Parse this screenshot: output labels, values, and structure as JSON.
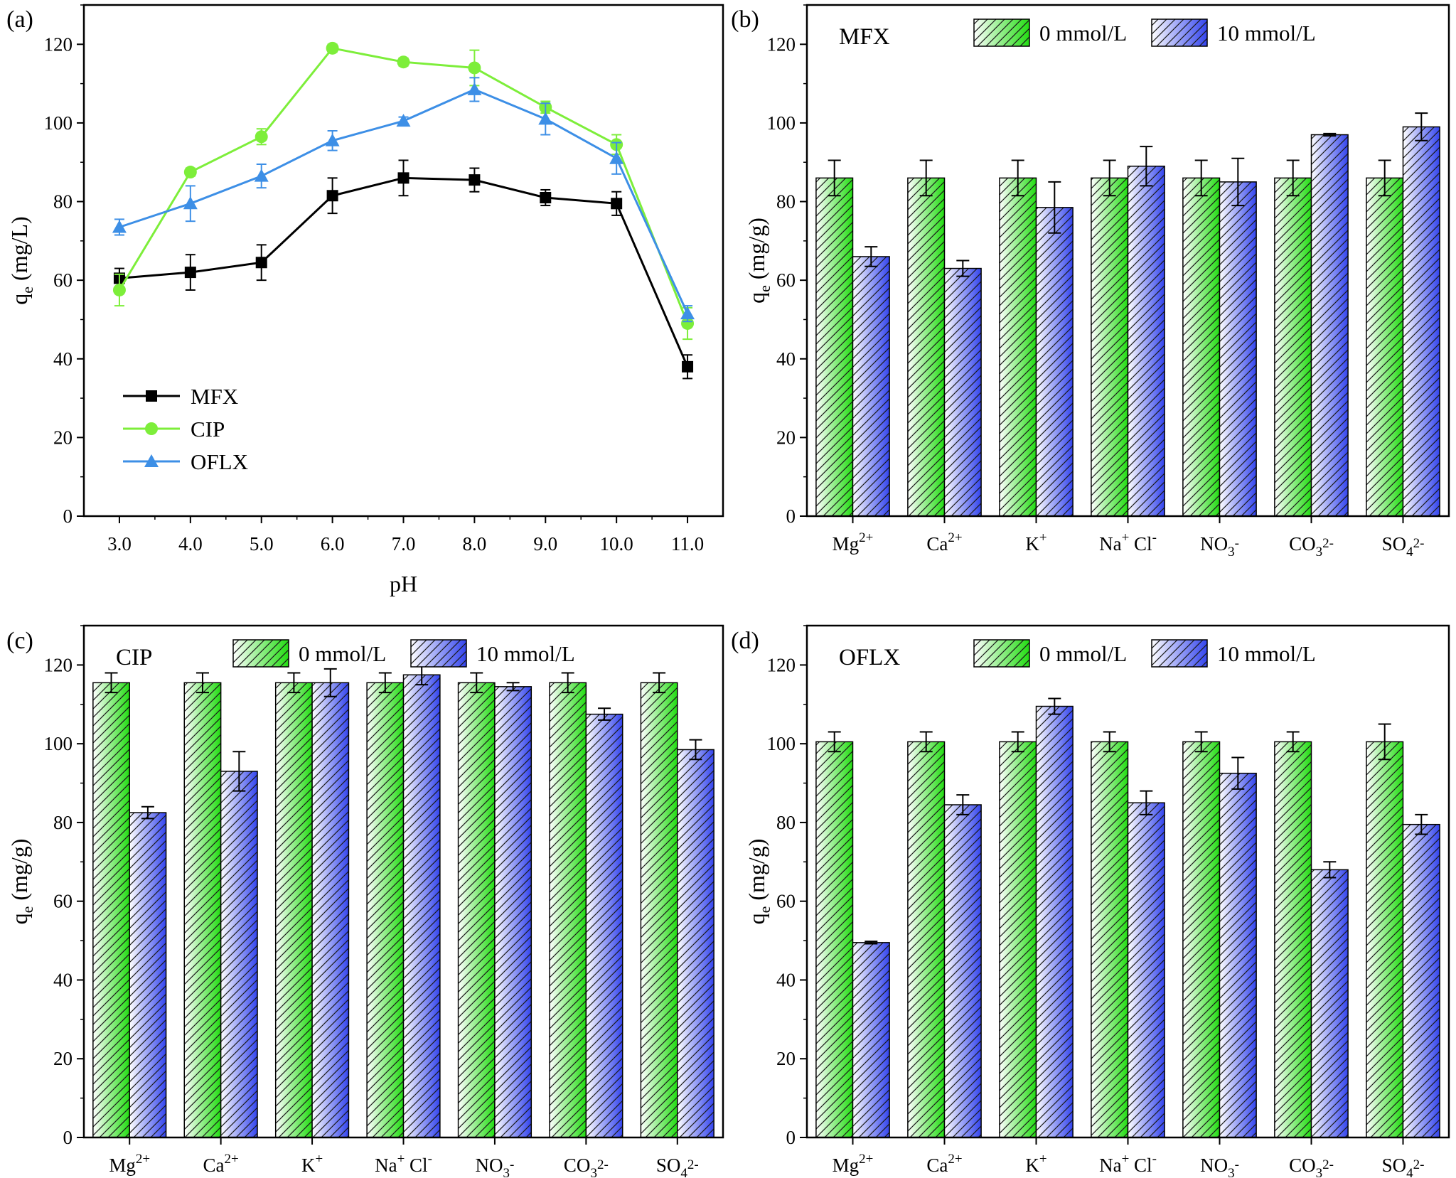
{
  "chart_data": [
    {
      "panel": "(a)",
      "type": "line",
      "title": "",
      "xlabel": "pH",
      "ylabel_main": "q",
      "ylabel_sub": "e",
      "ylabel_tail": " (mg/L)",
      "x": [
        3.0,
        4.0,
        5.0,
        6.0,
        7.0,
        8.0,
        9.0,
        10.0,
        11.0
      ],
      "x_tick_labels": [
        "3.0",
        "4.0",
        "5.0",
        "6.0",
        "7.0",
        "8.0",
        "9.0",
        "10.0",
        "11.0"
      ],
      "xlim": [
        2.5,
        11.5
      ],
      "ylim": [
        0,
        130
      ],
      "y_ticks": [
        0,
        20,
        40,
        60,
        80,
        100,
        120
      ],
      "legend_position": "bottom-left",
      "series": [
        {
          "name": "MFX",
          "color": "#000000",
          "marker": "square",
          "values": [
            60.5,
            62.0,
            64.5,
            81.5,
            86.0,
            85.5,
            81.0,
            79.5,
            38.0
          ],
          "errors": [
            2.5,
            4.5,
            4.5,
            4.5,
            4.5,
            3.0,
            2.0,
            3.0,
            3.0
          ]
        },
        {
          "name": "CIP",
          "color": "#7dee3a",
          "marker": "circle",
          "values": [
            57.5,
            87.5,
            96.5,
            119.0,
            115.5,
            114.0,
            104.0,
            94.5,
            49.0
          ],
          "errors": [
            4.0,
            1.0,
            2.0,
            1.0,
            1.0,
            4.5,
            1.5,
            2.5,
            4.0
          ]
        },
        {
          "name": "OFLX",
          "color": "#3d8fe6",
          "marker": "triangle",
          "values": [
            73.5,
            79.5,
            86.5,
            95.5,
            100.5,
            108.5,
            101.0,
            91.0,
            51.5
          ],
          "errors": [
            2.0,
            4.5,
            3.0,
            2.5,
            1.0,
            3.0,
            4.0,
            4.0,
            2.0
          ]
        }
      ]
    },
    {
      "panel": "(b)",
      "type": "bar",
      "title": "MFX",
      "ylabel_main": "q",
      "ylabel_sub": "e",
      "ylabel_tail": " (mg/g)",
      "ylim": [
        0,
        130
      ],
      "y_ticks": [
        0,
        20,
        40,
        60,
        80,
        100,
        120
      ],
      "legend_position": "top-right",
      "categories": [
        {
          "parts": [
            [
              "Mg",
              ""
            ],
            [
              "2+",
              "sup"
            ]
          ]
        },
        {
          "parts": [
            [
              "Ca",
              ""
            ],
            [
              "2+",
              "sup"
            ]
          ]
        },
        {
          "parts": [
            [
              "K",
              ""
            ],
            [
              "+",
              "sup"
            ]
          ]
        },
        {
          "parts": [
            [
              "Na",
              ""
            ],
            [
              "+",
              "sup"
            ],
            [
              " Cl",
              ""
            ],
            [
              "-",
              "sup"
            ]
          ]
        },
        {
          "parts": [
            [
              "NO",
              ""
            ],
            [
              "3",
              "sub"
            ],
            [
              "-",
              "sup"
            ]
          ]
        },
        {
          "parts": [
            [
              "CO",
              ""
            ],
            [
              "3",
              "sub"
            ],
            [
              "2-",
              "sup"
            ]
          ]
        },
        {
          "parts": [
            [
              "SO",
              ""
            ],
            [
              "4",
              "sub"
            ],
            [
              "2-",
              "sup"
            ]
          ]
        }
      ],
      "series": [
        {
          "name": "0 mmol/L",
          "color": "#22dd11",
          "values": [
            86,
            86,
            86,
            86,
            86,
            86,
            86
          ],
          "errors": [
            4.5,
            4.5,
            4.5,
            4.5,
            4.5,
            4.5,
            4.5
          ]
        },
        {
          "name": "10 mmol/L",
          "color": "#3344ee",
          "values": [
            66,
            63,
            78.5,
            89,
            85,
            97,
            99
          ],
          "errors": [
            2.5,
            2.0,
            6.5,
            5.0,
            6.0,
            0.3,
            3.5
          ]
        }
      ]
    },
    {
      "panel": "(c)",
      "type": "bar",
      "title": "CIP",
      "ylabel_main": "q",
      "ylabel_sub": "e",
      "ylabel_tail": " (mg/g)",
      "ylim": [
        0,
        130
      ],
      "y_ticks": [
        0,
        20,
        40,
        60,
        80,
        100,
        120
      ],
      "legend_position": "top-right",
      "categories": [
        {
          "parts": [
            [
              "Mg",
              ""
            ],
            [
              "2+",
              "sup"
            ]
          ]
        },
        {
          "parts": [
            [
              "Ca",
              ""
            ],
            [
              "2+",
              "sup"
            ]
          ]
        },
        {
          "parts": [
            [
              "K",
              ""
            ],
            [
              "+",
              "sup"
            ]
          ]
        },
        {
          "parts": [
            [
              "Na",
              ""
            ],
            [
              "+",
              "sup"
            ],
            [
              " Cl",
              ""
            ],
            [
              "-",
              "sup"
            ]
          ]
        },
        {
          "parts": [
            [
              "NO",
              ""
            ],
            [
              "3",
              "sub"
            ],
            [
              "-",
              "sup"
            ]
          ]
        },
        {
          "parts": [
            [
              "CO",
              ""
            ],
            [
              "3",
              "sub"
            ],
            [
              "2-",
              "sup"
            ]
          ]
        },
        {
          "parts": [
            [
              "SO",
              ""
            ],
            [
              "4",
              "sub"
            ],
            [
              "2-",
              "sup"
            ]
          ]
        }
      ],
      "series": [
        {
          "name": "0 mmol/L",
          "color": "#22dd11",
          "values": [
            115.5,
            115.5,
            115.5,
            115.5,
            115.5,
            115.5,
            115.5
          ],
          "errors": [
            2.5,
            2.5,
            2.5,
            2.5,
            2.5,
            2.5,
            2.5
          ]
        },
        {
          "name": "10 mmol/L",
          "color": "#3344ee",
          "values": [
            82.5,
            93,
            115.5,
            117.5,
            114.5,
            107.5,
            98.5
          ],
          "errors": [
            1.5,
            5.0,
            3.5,
            2.5,
            1.0,
            1.5,
            2.5
          ]
        }
      ]
    },
    {
      "panel": "(d)",
      "type": "bar",
      "title": "OFLX",
      "ylabel_main": "q",
      "ylabel_sub": "e",
      "ylabel_tail": " (mg/g)",
      "ylim": [
        0,
        130
      ],
      "y_ticks": [
        0,
        20,
        40,
        60,
        80,
        100,
        120
      ],
      "legend_position": "top-right",
      "categories": [
        {
          "parts": [
            [
              "Mg",
              ""
            ],
            [
              "2+",
              "sup"
            ]
          ]
        },
        {
          "parts": [
            [
              "Ca",
              ""
            ],
            [
              "2+",
              "sup"
            ]
          ]
        },
        {
          "parts": [
            [
              "K",
              ""
            ],
            [
              "+",
              "sup"
            ]
          ]
        },
        {
          "parts": [
            [
              "Na",
              ""
            ],
            [
              "+",
              "sup"
            ],
            [
              " Cl",
              ""
            ],
            [
              "-",
              "sup"
            ]
          ]
        },
        {
          "parts": [
            [
              "NO",
              ""
            ],
            [
              "3",
              "sub"
            ],
            [
              "-",
              "sup"
            ]
          ]
        },
        {
          "parts": [
            [
              "CO",
              ""
            ],
            [
              "3",
              "sub"
            ],
            [
              "2-",
              "sup"
            ]
          ]
        },
        {
          "parts": [
            [
              "SO",
              ""
            ],
            [
              "4",
              "sub"
            ],
            [
              "2-",
              "sup"
            ]
          ]
        }
      ],
      "series": [
        {
          "name": "0 mmol/L",
          "color": "#22dd11",
          "values": [
            100.5,
            100.5,
            100.5,
            100.5,
            100.5,
            100.5,
            100.5
          ],
          "errors": [
            2.5,
            2.5,
            2.5,
            2.5,
            2.5,
            2.5,
            4.5
          ]
        },
        {
          "name": "10 mmol/L",
          "color": "#3344ee",
          "values": [
            49.5,
            84.5,
            109.5,
            85,
            92.5,
            68,
            79.5
          ],
          "errors": [
            0.3,
            2.5,
            2.0,
            3.0,
            4.0,
            2.0,
            2.5
          ]
        }
      ]
    }
  ]
}
